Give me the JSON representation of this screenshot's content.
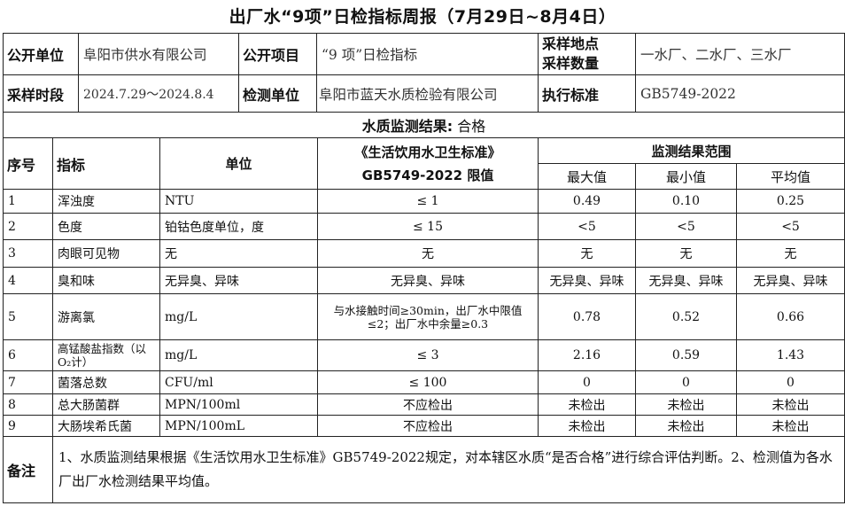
{
  "title": "出厂水“9项”日检指标周报（7月29日~8月4日）",
  "info": {
    "publisher_label": "公开单位",
    "publisher": "阜阳市供水有限公司",
    "item_label": "公开项目",
    "item": "“9 项”日检指标",
    "site_label_1": "采样地点",
    "site_label_2": "采样数量",
    "sites": "一水厂、二水厂、三水厂",
    "period_label": "采样时段",
    "period": "2024.7.29～2024.8.4",
    "lab_label": "检测单位",
    "lab": "阜阳市蓝天水质检验有限公司",
    "standard_label": "执行标准",
    "standard": "GB5749-2022"
  },
  "result": {
    "label": "水质监测结果:",
    "value": "合格"
  },
  "table": {
    "headers": {
      "no": "序号",
      "indicator": "指标",
      "unit": "单位",
      "limit_1": "《生活饮用水卫生标准》",
      "limit_2": "GB5749-2022 限值",
      "range": "监测结果范围",
      "max": "最大值",
      "min": "最小值",
      "avg": "平均值"
    },
    "rows": [
      {
        "no": "1",
        "indicator": "浑浊度",
        "unit": "NTU",
        "limit": "≤ 1",
        "max": "0.49",
        "min": "0.10",
        "avg": "0.25"
      },
      {
        "no": "2",
        "indicator": "色度",
        "unit": "铂钴色度单位，度",
        "limit": "≤ 15",
        "max": "<5",
        "min": "<5",
        "avg": "<5"
      },
      {
        "no": "3",
        "indicator": "肉眼可见物",
        "unit": "无",
        "limit": "无",
        "max": "无",
        "min": "无",
        "avg": "无"
      },
      {
        "no": "4",
        "indicator": "臭和味",
        "unit": "无异臭、异味",
        "limit": "无异臭、异味",
        "max": "无异臭、异味",
        "min": "无异臭、异味",
        "avg": "无异臭、异味"
      },
      {
        "no": "5",
        "indicator": "游离氯",
        "unit": "mg/L",
        "limit": "与水接触时间≥30min，出厂水中限值≤2；出厂水中余量≥0.3",
        "max": "0.78",
        "min": "0.52",
        "avg": "0.66"
      },
      {
        "no": "6",
        "indicator": "高锰酸盐指数（以O₂计）",
        "unit": "mg/L",
        "limit": "≤ 3",
        "max": "2.16",
        "min": "0.59",
        "avg": "1.43"
      },
      {
        "no": "7",
        "indicator": "菌落总数",
        "unit": "CFU/ml",
        "limit": "≤ 100",
        "max": "0",
        "min": "0",
        "avg": "0"
      },
      {
        "no": "8",
        "indicator": "总大肠菌群",
        "unit": "MPN/100ml",
        "limit": "不应检出",
        "max": "未检出",
        "min": "未检出",
        "avg": "未检出"
      },
      {
        "no": "9",
        "indicator": "大肠埃希氏菌",
        "unit": "MPN/100mL",
        "limit": "不应检出",
        "max": "未检出",
        "min": "未检出",
        "avg": "未检出"
      }
    ]
  },
  "notes": {
    "label": "备注",
    "text": "1、水质监测结果根据《生活饮用水卫生标准》GB5749-2022规定，对本辖区水质“是否合格”进行综合评估判断。2、检测值为各水厂出厂水检测结果平均值。"
  }
}
